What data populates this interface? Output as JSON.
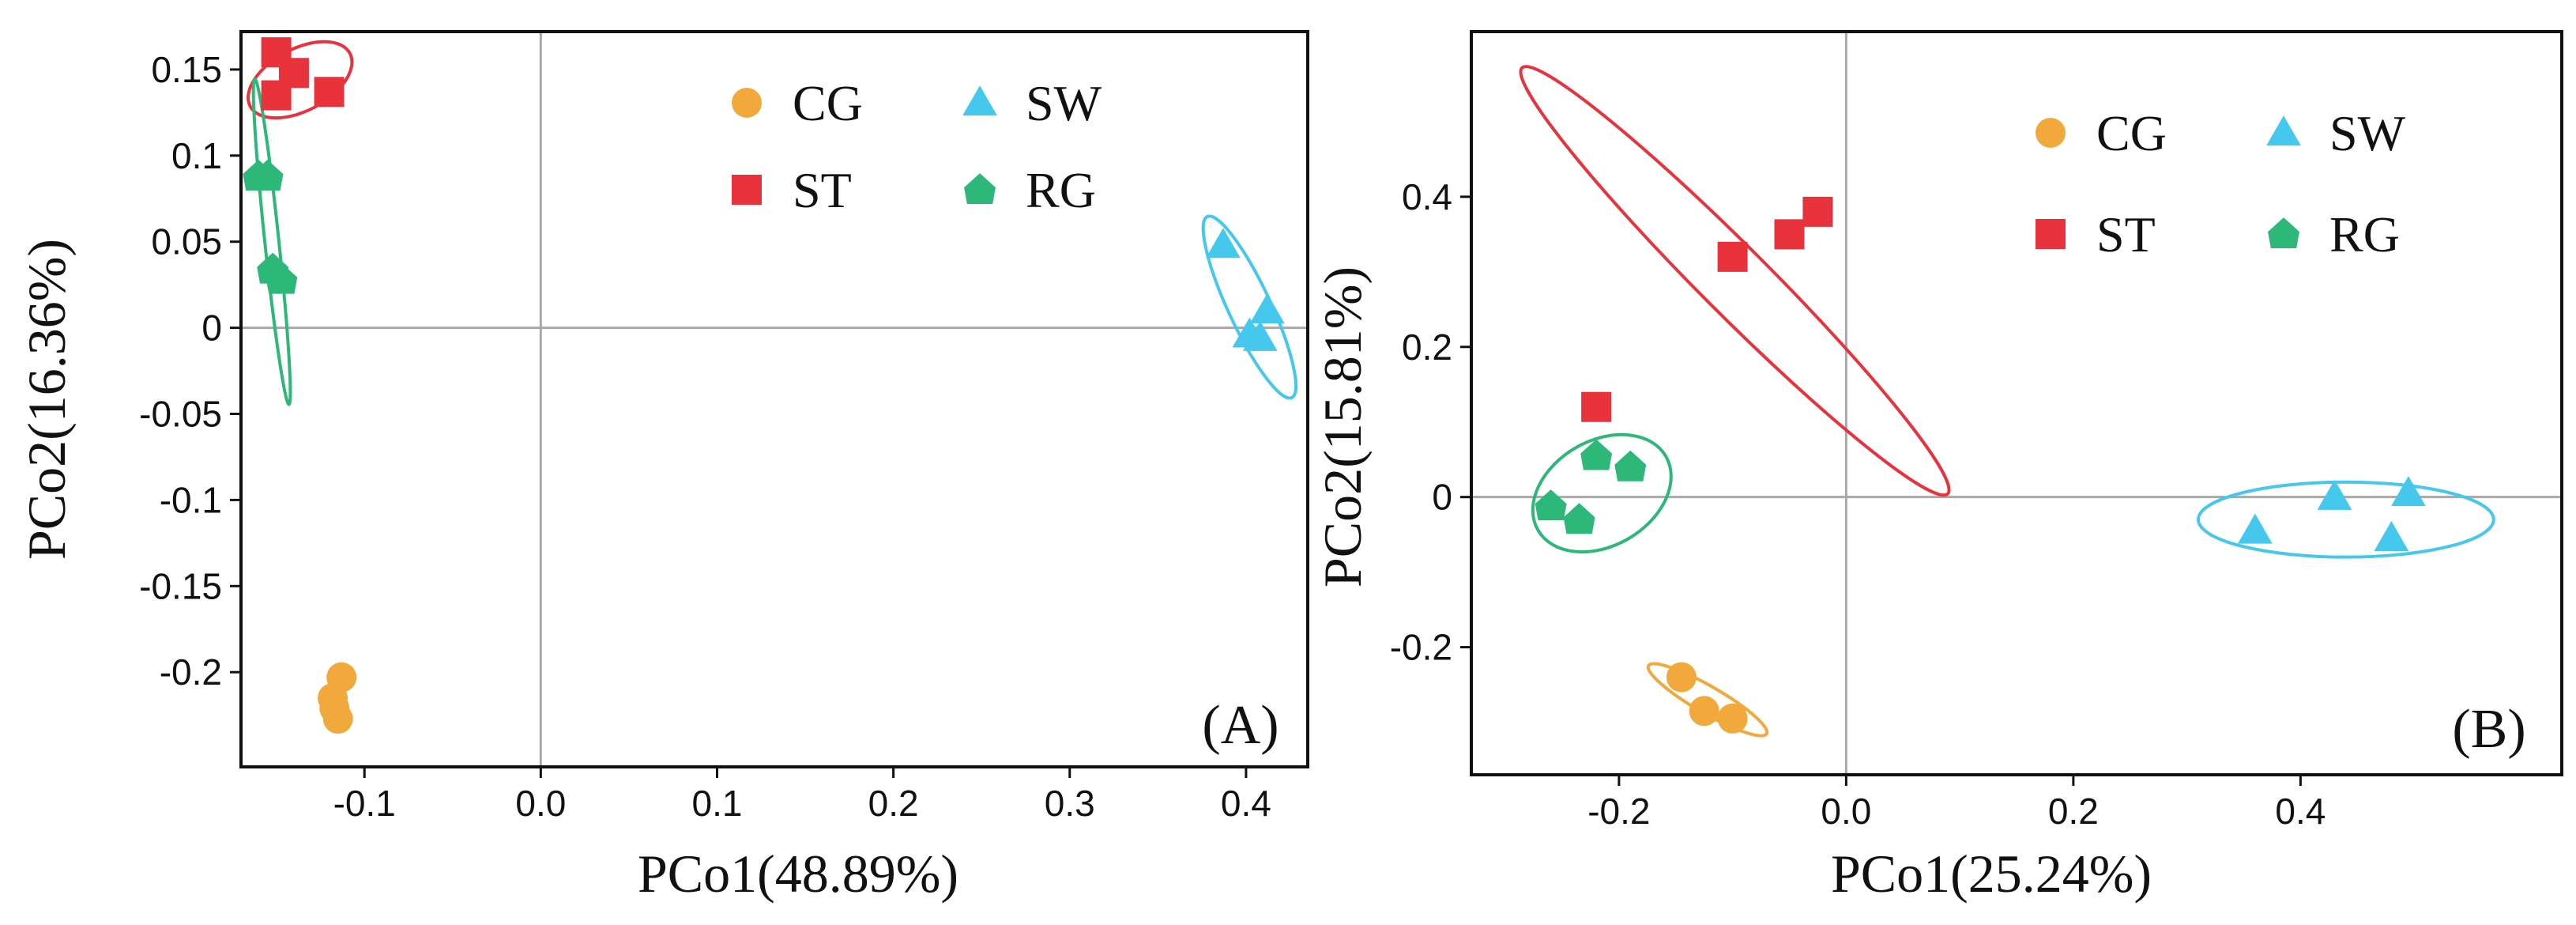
{
  "chart_data": [
    {
      "type": "scatter",
      "panel_label": "(A)",
      "xlabel": "PCo1(48.89%)",
      "ylabel": "PCo2(16.36%)",
      "xlim": [
        -0.17,
        0.435
      ],
      "ylim": [
        -0.255,
        0.172
      ],
      "xticks": [
        {
          "value": -0.1,
          "label": "-0.1"
        },
        {
          "value": 0.0,
          "label": "0.0"
        },
        {
          "value": 0.1,
          "label": "0.1"
        },
        {
          "value": 0.2,
          "label": "0.2"
        },
        {
          "value": 0.3,
          "label": "0.3"
        },
        {
          "value": 0.4,
          "label": "0.4"
        }
      ],
      "yticks": [
        {
          "value": 0.15,
          "label": "0.15"
        },
        {
          "value": 0.1,
          "label": "0.1"
        },
        {
          "value": 0.05,
          "label": "0.05"
        },
        {
          "value": 0.0,
          "label": "0"
        },
        {
          "value": -0.05,
          "label": "-0.05"
        },
        {
          "value": -0.1,
          "label": "-0.1"
        },
        {
          "value": -0.15,
          "label": "-0.15"
        },
        {
          "value": -0.2,
          "label": "-0.2"
        }
      ],
      "zero_lines": true,
      "grid": false,
      "legend_position": "top-right",
      "series": [
        {
          "name": "CG",
          "marker": "circle",
          "color": "#F2A93B",
          "points": [
            [
              -0.113,
              -0.203
            ],
            [
              -0.118,
              -0.215
            ],
            [
              -0.115,
              -0.227
            ],
            [
              -0.117,
              -0.221
            ]
          ],
          "ellipse": {
            "cx": -0.115,
            "cy": -0.215,
            "rx": 0.003,
            "ry": 0.015,
            "angle": 0
          }
        },
        {
          "name": "ST",
          "marker": "square",
          "color": "#E8323C",
          "points": [
            [
              -0.15,
              0.16
            ],
            [
              -0.14,
              0.148
            ],
            [
              -0.15,
              0.135
            ],
            [
              -0.12,
              0.137
            ]
          ],
          "ellipse": {
            "cx": -0.1365,
            "cy": 0.144,
            "rx": 0.032,
            "ry": 0.018,
            "angle": -28
          }
        },
        {
          "name": "SW",
          "marker": "triangle",
          "color": "#45C7EE",
          "points": [
            [
              0.387,
              0.048
            ],
            [
              0.412,
              0.01
            ],
            [
              0.402,
              -0.004
            ],
            [
              0.408,
              -0.006
            ]
          ],
          "ellipse": {
            "cx": 0.402,
            "cy": 0.012,
            "rx": 0.012,
            "ry": 0.058,
            "angle": -25
          }
        },
        {
          "name": "RG",
          "marker": "pentagon",
          "color": "#2DB87A",
          "points": [
            [
              -0.16,
              0.088
            ],
            [
              -0.155,
              0.088
            ],
            [
              -0.152,
              0.034
            ],
            [
              -0.147,
              0.028
            ]
          ],
          "ellipse": {
            "cx": -0.1525,
            "cy": 0.05,
            "rx": 0.004,
            "ry": 0.095,
            "angle": -6
          }
        }
      ]
    },
    {
      "type": "scatter",
      "panel_label": "(B)",
      "xlabel": "PCo1(25.24%)",
      "ylabel": "PCo2(15.81%)",
      "xlim": [
        -0.33,
        0.63
      ],
      "ylim": [
        -0.37,
        0.62
      ],
      "xticks": [
        {
          "value": -0.2,
          "label": "-0.2"
        },
        {
          "value": 0.0,
          "label": "0.0"
        },
        {
          "value": 0.2,
          "label": "0.2"
        },
        {
          "value": 0.4,
          "label": "0.4"
        }
      ],
      "yticks": [
        {
          "value": 0.4,
          "label": "0.4"
        },
        {
          "value": 0.2,
          "label": "0.2"
        },
        {
          "value": 0.0,
          "label": "0"
        },
        {
          "value": -0.2,
          "label": "-0.2"
        }
      ],
      "zero_lines": true,
      "grid": false,
      "legend_position": "top-right",
      "series": [
        {
          "name": "CG",
          "marker": "circle",
          "color": "#F2A93B",
          "points": [
            [
              -0.145,
              -0.24
            ],
            [
              -0.125,
              -0.285
            ],
            [
              -0.1,
              -0.295
            ]
          ],
          "ellipse": {
            "cx": -0.122,
            "cy": -0.27,
            "rx": 0.06,
            "ry": 0.018,
            "angle": 30
          }
        },
        {
          "name": "ST",
          "marker": "square",
          "color": "#E8323C",
          "points": [
            [
              -0.1,
              0.32
            ],
            [
              -0.05,
              0.35
            ],
            [
              -0.025,
              0.38
            ],
            [
              -0.22,
              0.12
            ]
          ],
          "ellipse": {
            "cx": -0.098,
            "cy": 0.288,
            "rx": 0.265,
            "ry": 0.045,
            "angle": 45
          }
        },
        {
          "name": "SW",
          "marker": "triangle",
          "color": "#45C7EE",
          "points": [
            [
              0.36,
              -0.045
            ],
            [
              0.43,
              0.0
            ],
            [
              0.48,
              -0.055
            ],
            [
              0.495,
              0.005
            ]
          ],
          "ellipse": {
            "cx": 0.44,
            "cy": -0.03,
            "rx": 0.13,
            "ry": 0.05,
            "angle": 0
          }
        },
        {
          "name": "RG",
          "marker": "pentagon",
          "color": "#2DB87A",
          "points": [
            [
              -0.22,
              0.055
            ],
            [
              -0.19,
              0.04
            ],
            [
              -0.26,
              -0.012
            ],
            [
              -0.235,
              -0.03
            ]
          ],
          "ellipse": {
            "cx": -0.215,
            "cy": 0.005,
            "rx": 0.065,
            "ry": 0.07,
            "angle": -30
          }
        }
      ]
    }
  ]
}
